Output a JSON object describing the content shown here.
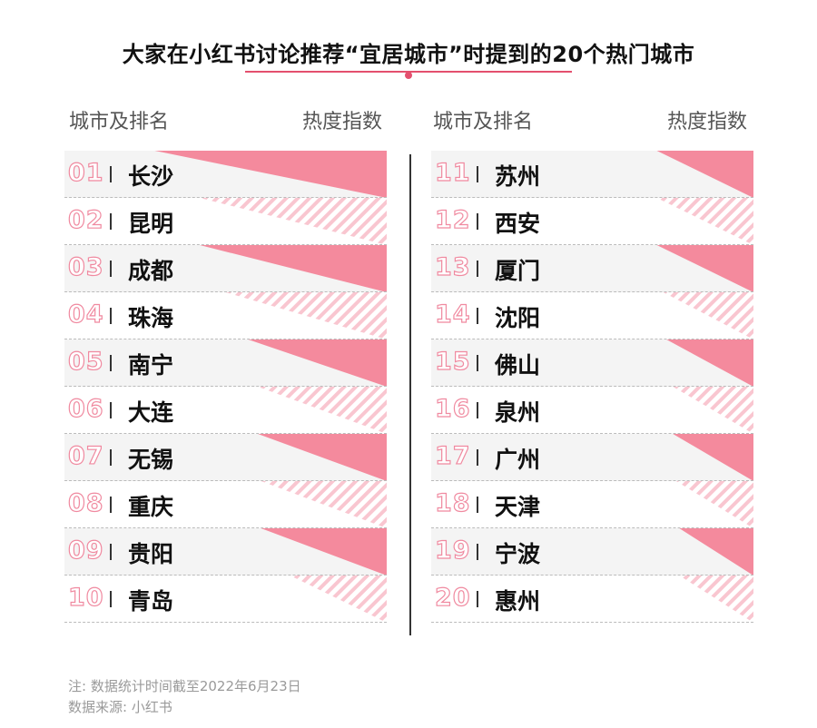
{
  "title": "大家在小红书讨论推荐“宜居城市”时提到的20个热门城市",
  "columns": {
    "left_label": "城市及排名",
    "right_label": "热度指数"
  },
  "colors": {
    "accent": "#e4506e",
    "wedge": "#f48a9d",
    "hatch": "#f9c6d0",
    "row_shade": "#f4f4f4"
  },
  "chart_data": {
    "type": "table",
    "title": "大家在小红书讨论推荐“宜居城市”时提到的20个热门城市",
    "xlabel": "城市及排名",
    "ylabel": "热度指数",
    "columns": [
      "排名",
      "城市"
    ],
    "rows": [
      {
        "rank": "01",
        "city": "长沙",
        "heat_rel": 0.72
      },
      {
        "rank": "02",
        "city": "昆明",
        "heat_rel": 0.58
      },
      {
        "rank": "03",
        "city": "成都",
        "heat_rel": 0.58
      },
      {
        "rank": "04",
        "city": "珠海",
        "heat_rel": 0.5
      },
      {
        "rank": "05",
        "city": "南宁",
        "heat_rel": 0.43
      },
      {
        "rank": "06",
        "city": "大连",
        "heat_rel": 0.4
      },
      {
        "rank": "07",
        "city": "无锡",
        "heat_rel": 0.4
      },
      {
        "rank": "08",
        "city": "重庆",
        "heat_rel": 0.39
      },
      {
        "rank": "09",
        "city": "贵阳",
        "heat_rel": 0.39
      },
      {
        "rank": "10",
        "city": "青岛",
        "heat_rel": 0.3
      },
      {
        "rank": "11",
        "city": "苏州",
        "heat_rel": 0.3
      },
      {
        "rank": "12",
        "city": "西安",
        "heat_rel": 0.3
      },
      {
        "rank": "13",
        "city": "厦门",
        "heat_rel": 0.3
      },
      {
        "rank": "14",
        "city": "沈阳",
        "heat_rel": 0.28
      },
      {
        "rank": "15",
        "city": "佛山",
        "heat_rel": 0.27
      },
      {
        "rank": "16",
        "city": "泉州",
        "heat_rel": 0.25
      },
      {
        "rank": "17",
        "city": "广州",
        "heat_rel": 0.25
      },
      {
        "rank": "18",
        "city": "天津",
        "heat_rel": 0.24
      },
      {
        "rank": "19",
        "city": "宁波",
        "heat_rel": 0.23
      },
      {
        "rank": "20",
        "city": "惠州",
        "heat_rel": 0.23
      }
    ]
  },
  "notes": {
    "note": "注: 数据统计时间截至2022年6月23日",
    "source": "数据来源: 小红书"
  }
}
